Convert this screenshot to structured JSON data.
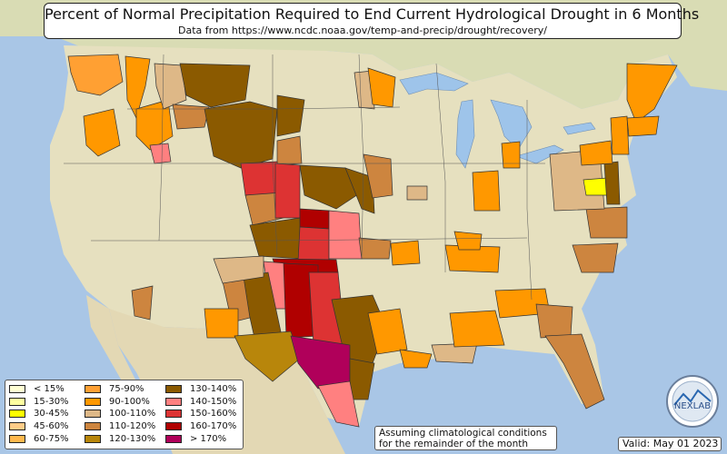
{
  "title": "Percent of Normal Precipitation Required to End Current Hydrological Drought in 6 Months",
  "subtitle": "Data from https://www.ncdc.noaa.gov/temp-and-precip/drought/recovery/",
  "legend": [
    {
      "label": "< 15%",
      "color": "#ffffd4"
    },
    {
      "label": "15-30%",
      "color": "#ffffa0"
    },
    {
      "label": "30-45%",
      "color": "#ffff00"
    },
    {
      "label": "45-60%",
      "color": "#ffcc88"
    },
    {
      "label": "60-75%",
      "color": "#ffb84d"
    },
    {
      "label": "75-90%",
      "color": "#ffa033"
    },
    {
      "label": "90-100%",
      "color": "#ff9800"
    },
    {
      "label": "100-110%",
      "color": "#deb887"
    },
    {
      "label": "110-120%",
      "color": "#cd853f"
    },
    {
      "label": "120-130%",
      "color": "#b8860b"
    },
    {
      "label": "130-140%",
      "color": "#8b5a00"
    },
    {
      "label": "140-150%",
      "color": "#ff8080"
    },
    {
      "label": "150-160%",
      "color": "#dd3333"
    },
    {
      "label": "160-170%",
      "color": "#b00000"
    },
    {
      "label": "> 170%",
      "color": "#b0005a"
    }
  ],
  "note": {
    "line1": "Assuming climatological conditions",
    "line2": "for the remainder of the month"
  },
  "valid": "Valid: May 01 2023",
  "logo": {
    "text": "NEXLAB"
  },
  "colors": {
    "ocean": "#a9c6e6",
    "land": "#e8e2c0",
    "lakes": "#9ec4ea"
  }
}
